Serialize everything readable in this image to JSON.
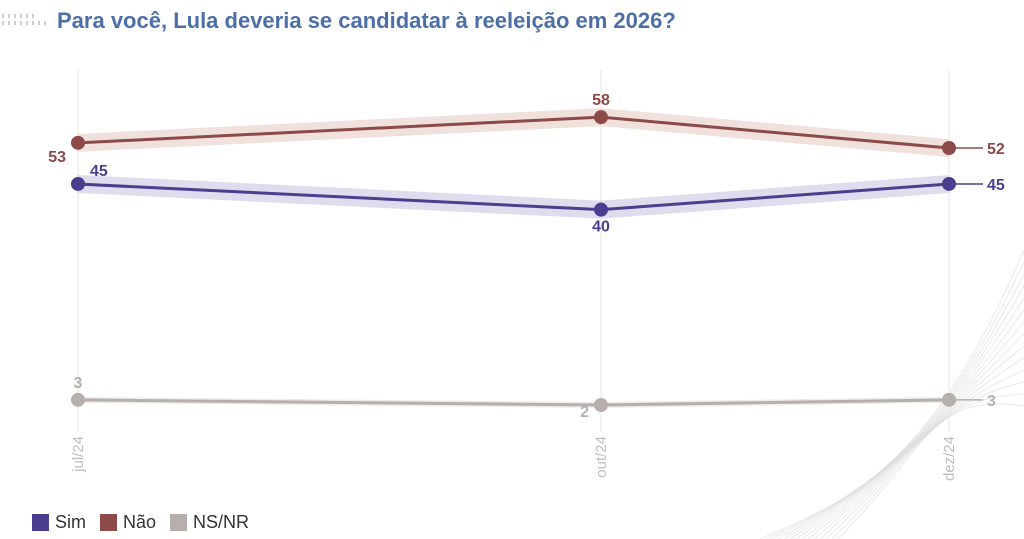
{
  "title": "Para você, Lula deveria se candidatar à reeleição em 2026?",
  "colors": {
    "sim": "#4a3f8f",
    "nao": "#8c4a48",
    "nsnr": "#b7aeae",
    "sim_band": "#d9d7ea",
    "nao_band": "#eedcd6",
    "nsnr_band": "#ece8e8",
    "title": "#4d6fa8",
    "grid": "#e6e6e6"
  },
  "legend": [
    {
      "name": "Sim",
      "color": "#4a3f8f"
    },
    {
      "name": "Não",
      "color": "#8c4a48"
    },
    {
      "name": "NS/NR",
      "color": "#b7aeae"
    }
  ],
  "chart_data": {
    "type": "line",
    "categories": [
      "jul/24",
      "out/24",
      "dez/24"
    ],
    "series": [
      {
        "name": "Sim",
        "values": [
          45,
          40,
          45
        ]
      },
      {
        "name": "Não",
        "values": [
          53,
          58,
          52
        ]
      },
      {
        "name": "NS/NR",
        "values": [
          3,
          2,
          3
        ]
      }
    ],
    "title": "Para você, Lula deveria se candidatar à reeleição em 2026?",
    "xlabel": "",
    "ylabel": "",
    "ylim": [
      0,
      65
    ],
    "grid": "vertical",
    "legend_position": "bottom-left"
  }
}
